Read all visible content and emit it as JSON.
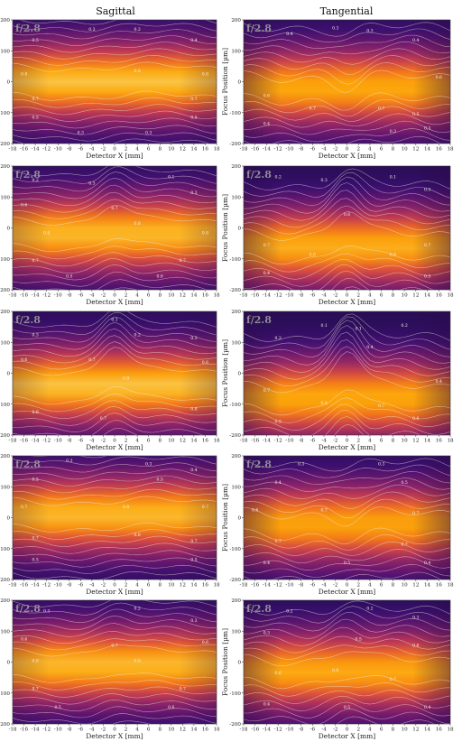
{
  "figure": {
    "col_titles": [
      "Sagittal",
      "Tangential"
    ]
  },
  "chart_data": [
    {
      "type": "heatmap",
      "panel": "sagittal-1",
      "fnumber": "f/2.8",
      "xlabel": "Detector X [mm]",
      "ylabel": "",
      "xlim": [
        -18,
        18
      ],
      "ylim": [
        -200,
        200
      ],
      "xticks": [
        -18,
        -16,
        -14,
        -12,
        -10,
        -8,
        -6,
        -4,
        -2,
        0,
        2,
        4,
        6,
        8,
        10,
        12,
        14,
        16,
        18
      ],
      "yticks": [
        200,
        100,
        0,
        -100,
        -200
      ],
      "contour_levels": [
        0.1,
        0.2,
        0.3,
        0.4,
        0.5,
        0.6,
        0.7,
        0.8
      ],
      "peak_value": 0.9,
      "peak_focus_um": 0,
      "center_bump": 0,
      "labels": [
        {
          "x": -14,
          "y": 130,
          "v": "0.5"
        },
        {
          "x": -4,
          "y": 165,
          "v": "0.3"
        },
        {
          "x": 4,
          "y": 165,
          "v": "0.2"
        },
        {
          "x": 14,
          "y": 130,
          "v": "0.4"
        },
        {
          "x": -16,
          "y": 20,
          "v": "0.8"
        },
        {
          "x": 4,
          "y": 30,
          "v": "0.8"
        },
        {
          "x": 16,
          "y": 20,
          "v": "0.8"
        },
        {
          "x": -14,
          "y": -60,
          "v": "0.7"
        },
        {
          "x": 14,
          "y": -60,
          "v": "0.7"
        },
        {
          "x": -14,
          "y": -120,
          "v": "0.5"
        },
        {
          "x": 14,
          "y": -120,
          "v": "0.5"
        },
        {
          "x": -6,
          "y": -170,
          "v": "0.3"
        },
        {
          "x": 6,
          "y": -170,
          "v": "0.3"
        }
      ]
    },
    {
      "type": "heatmap",
      "panel": "tangential-1",
      "fnumber": "f/2.8",
      "xlabel": "Detector X [mm]",
      "ylabel": "Focus Position [µm]",
      "xlim": [
        -18,
        18
      ],
      "ylim": [
        -200,
        200
      ],
      "xticks": [
        -18,
        -16,
        -14,
        -12,
        -10,
        -8,
        -6,
        -4,
        -2,
        0,
        2,
        4,
        6,
        8,
        10,
        12,
        14,
        16,
        18
      ],
      "yticks": [
        200,
        100,
        0,
        -100,
        -200
      ],
      "contour_levels": [
        0.1,
        0.2,
        0.3,
        0.4,
        0.5,
        0.6,
        0.7,
        0.8
      ],
      "peak_value": 0.85,
      "peak_focus_um": -20,
      "center_bump": -40,
      "labels": [
        {
          "x": -10,
          "y": 150,
          "v": "0.4"
        },
        {
          "x": -2,
          "y": 170,
          "v": "0.3"
        },
        {
          "x": 4,
          "y": 160,
          "v": "0.3"
        },
        {
          "x": 12,
          "y": 130,
          "v": "0.4"
        },
        {
          "x": 16,
          "y": 10,
          "v": "0.6"
        },
        {
          "x": -14,
          "y": -50,
          "v": "0.6"
        },
        {
          "x": -6,
          "y": -90,
          "v": "0.7"
        },
        {
          "x": 6,
          "y": -90,
          "v": "0.7"
        },
        {
          "x": 12,
          "y": -110,
          "v": "0.5"
        },
        {
          "x": -14,
          "y": -140,
          "v": "0.4"
        },
        {
          "x": 8,
          "y": -165,
          "v": "0.3"
        },
        {
          "x": 14,
          "y": -155,
          "v": "0.3"
        }
      ]
    },
    {
      "type": "heatmap",
      "panel": "sagittal-2",
      "fnumber": "f/2.8",
      "xlabel": "Detector X [mm]",
      "ylabel": "",
      "xlim": [
        -18,
        18
      ],
      "ylim": [
        -200,
        200
      ],
      "xticks": [
        -18,
        -16,
        -14,
        -12,
        -10,
        -8,
        -6,
        -4,
        -2,
        0,
        2,
        4,
        6,
        8,
        10,
        12,
        14,
        16,
        18
      ],
      "yticks": [
        200,
        100,
        0,
        -100,
        -200
      ],
      "contour_levels": [
        0.1,
        0.2,
        0.3,
        0.4,
        0.5,
        0.6,
        0.7,
        0.8
      ],
      "peak_value": 0.88,
      "peak_focus_um": -20,
      "center_bump": 60,
      "labels": [
        {
          "x": -14,
          "y": 150,
          "v": "0.2"
        },
        {
          "x": -4,
          "y": 140,
          "v": "0.3"
        },
        {
          "x": 10,
          "y": 160,
          "v": "0.1"
        },
        {
          "x": 14,
          "y": 110,
          "v": "0.3"
        },
        {
          "x": -16,
          "y": 70,
          "v": "0.6"
        },
        {
          "x": 0,
          "y": 60,
          "v": "0.7"
        },
        {
          "x": 4,
          "y": 10,
          "v": "0.8"
        },
        {
          "x": -12,
          "y": -20,
          "v": "0.8"
        },
        {
          "x": 16,
          "y": -20,
          "v": "0.8"
        },
        {
          "x": -14,
          "y": -110,
          "v": "0.7"
        },
        {
          "x": 12,
          "y": -110,
          "v": "0.7"
        },
        {
          "x": -8,
          "y": -160,
          "v": "0.5"
        },
        {
          "x": 8,
          "y": -160,
          "v": "0.6"
        }
      ]
    },
    {
      "type": "heatmap",
      "panel": "tangential-2",
      "fnumber": "f/2.8",
      "xlabel": "Detector X [mm]",
      "ylabel": "Focus Position [µm]",
      "xlim": [
        -18,
        18
      ],
      "ylim": [
        -200,
        200
      ],
      "xticks": [
        -18,
        -16,
        -14,
        -12,
        -10,
        -8,
        -6,
        -4,
        -2,
        0,
        2,
        4,
        6,
        8,
        10,
        12,
        14,
        16,
        18
      ],
      "yticks": [
        200,
        100,
        0,
        -100,
        -200
      ],
      "contour_levels": [
        0.1,
        0.2,
        0.3,
        0.4,
        0.5,
        0.6,
        0.7,
        0.8
      ],
      "peak_value": 0.86,
      "peak_focus_um": -60,
      "center_bump": 90,
      "labels": [
        {
          "x": -12,
          "y": 160,
          "v": "0.2"
        },
        {
          "x": -4,
          "y": 150,
          "v": "0.3"
        },
        {
          "x": 8,
          "y": 160,
          "v": "0.1"
        },
        {
          "x": 14,
          "y": 120,
          "v": "0.3"
        },
        {
          "x": 0,
          "y": 40,
          "v": "0.6"
        },
        {
          "x": -14,
          "y": -60,
          "v": "0.7"
        },
        {
          "x": -6,
          "y": -90,
          "v": "0.8"
        },
        {
          "x": 8,
          "y": -90,
          "v": "0.8"
        },
        {
          "x": 14,
          "y": -60,
          "v": "0.7"
        },
        {
          "x": -14,
          "y": -150,
          "v": "0.4"
        },
        {
          "x": 14,
          "y": -160,
          "v": "0.5"
        }
      ]
    },
    {
      "type": "heatmap",
      "panel": "sagittal-3",
      "fnumber": "f/2.8",
      "xlabel": "Detector X [mm]",
      "ylabel": "",
      "xlim": [
        -18,
        18
      ],
      "ylim": [
        -200,
        200
      ],
      "xticks": [
        -18,
        -16,
        -14,
        -12,
        -10,
        -8,
        -6,
        -4,
        -2,
        0,
        2,
        4,
        6,
        8,
        10,
        12,
        14,
        16,
        18
      ],
      "yticks": [
        200,
        100,
        0,
        -100,
        -200
      ],
      "contour_levels": [
        0.1,
        0.2,
        0.3,
        0.4,
        0.5,
        0.6,
        0.7,
        0.8
      ],
      "peak_value": 0.9,
      "peak_focus_um": -40,
      "center_bump": 90,
      "labels": [
        {
          "x": 0,
          "y": 170,
          "v": "0.1"
        },
        {
          "x": -14,
          "y": 120,
          "v": "0.3"
        },
        {
          "x": 4,
          "y": 120,
          "v": "0.2"
        },
        {
          "x": 14,
          "y": 110,
          "v": "0.3"
        },
        {
          "x": -16,
          "y": 40,
          "v": "0.6"
        },
        {
          "x": -4,
          "y": 40,
          "v": "0.7"
        },
        {
          "x": 16,
          "y": 30,
          "v": "0.6"
        },
        {
          "x": 2,
          "y": -20,
          "v": "0.8"
        },
        {
          "x": -14,
          "y": -130,
          "v": "0.8"
        },
        {
          "x": 14,
          "y": -120,
          "v": "0.8"
        },
        {
          "x": -2,
          "y": -150,
          "v": "0.7"
        }
      ]
    },
    {
      "type": "heatmap",
      "panel": "tangential-3",
      "fnumber": "f/2.8",
      "xlabel": "Detector X [mm]",
      "ylabel": "Focus Position [µm]",
      "xlim": [
        -18,
        18
      ],
      "ylim": [
        -200,
        200
      ],
      "xticks": [
        -18,
        -16,
        -14,
        -12,
        -10,
        -8,
        -6,
        -4,
        -2,
        0,
        2,
        4,
        6,
        8,
        10,
        12,
        14,
        16,
        18
      ],
      "yticks": [
        200,
        100,
        0,
        -100,
        -200
      ],
      "contour_levels": [
        0.1,
        0.2,
        0.3,
        0.4,
        0.5,
        0.6,
        0.7,
        0.8
      ],
      "peak_value": 0.85,
      "peak_focus_um": -80,
      "center_bump": 130,
      "labels": [
        {
          "x": -4,
          "y": 150,
          "v": "0.1"
        },
        {
          "x": 2,
          "y": 140,
          "v": "0.1"
        },
        {
          "x": 10,
          "y": 150,
          "v": "0.2"
        },
        {
          "x": -12,
          "y": 110,
          "v": "0.3"
        },
        {
          "x": 4,
          "y": 80,
          "v": "0.4"
        },
        {
          "x": 16,
          "y": -30,
          "v": "0.4"
        },
        {
          "x": -14,
          "y": -60,
          "v": "0.7"
        },
        {
          "x": -4,
          "y": -100,
          "v": "0.8"
        },
        {
          "x": 6,
          "y": -110,
          "v": "0.7"
        },
        {
          "x": -12,
          "y": -160,
          "v": "0.5"
        },
        {
          "x": 12,
          "y": -150,
          "v": "0.6"
        }
      ]
    },
    {
      "type": "heatmap",
      "panel": "sagittal-4",
      "fnumber": "f/2.8",
      "xlabel": "Detector X [mm]",
      "ylabel": "",
      "xlim": [
        -18,
        18
      ],
      "ylim": [
        -200,
        200
      ],
      "xticks": [
        -18,
        -16,
        -14,
        -12,
        -10,
        -8,
        -6,
        -4,
        -2,
        0,
        2,
        4,
        6,
        8,
        10,
        12,
        14,
        16,
        18
      ],
      "yticks": [
        200,
        100,
        0,
        -100,
        -200
      ],
      "contour_levels": [
        0.1,
        0.2,
        0.3,
        0.4,
        0.5,
        0.6,
        0.7,
        0.8
      ],
      "peak_value": 0.88,
      "peak_focus_um": 10,
      "center_bump": 0,
      "labels": [
        {
          "x": -8,
          "y": 180,
          "v": "0.3"
        },
        {
          "x": 6,
          "y": 170,
          "v": "0.3"
        },
        {
          "x": 14,
          "y": 150,
          "v": "0.4"
        },
        {
          "x": -14,
          "y": 120,
          "v": "0.5"
        },
        {
          "x": 8,
          "y": 120,
          "v": "0.5"
        },
        {
          "x": -16,
          "y": 30,
          "v": "0.7"
        },
        {
          "x": 2,
          "y": 30,
          "v": "0.8"
        },
        {
          "x": 16,
          "y": 30,
          "v": "0.7"
        },
        {
          "x": -14,
          "y": -70,
          "v": "0.7"
        },
        {
          "x": 4,
          "y": -60,
          "v": "0.8"
        },
        {
          "x": 14,
          "y": -80,
          "v": "0.7"
        },
        {
          "x": -14,
          "y": -140,
          "v": "0.5"
        },
        {
          "x": 14,
          "y": -140,
          "v": "0.5"
        }
      ]
    },
    {
      "type": "heatmap",
      "panel": "tangential-4",
      "fnumber": "f/2.8",
      "xlabel": "Detector X [mm]",
      "ylabel": "Focus Position [µm]",
      "xlim": [
        -18,
        18
      ],
      "ylim": [
        -200,
        200
      ],
      "xticks": [
        -18,
        -16,
        -14,
        -12,
        -10,
        -8,
        -6,
        -4,
        -2,
        0,
        2,
        4,
        6,
        8,
        10,
        12,
        14,
        16,
        18
      ],
      "yticks": [
        200,
        100,
        0,
        -100,
        -200
      ],
      "contour_levels": [
        0.1,
        0.2,
        0.3,
        0.4,
        0.5,
        0.6,
        0.7,
        0.8
      ],
      "peak_value": 0.84,
      "peak_focus_um": -20,
      "center_bump": -30,
      "labels": [
        {
          "x": -8,
          "y": 170,
          "v": "0.3"
        },
        {
          "x": 6,
          "y": 170,
          "v": "0.3"
        },
        {
          "x": -12,
          "y": 110,
          "v": "0.4"
        },
        {
          "x": 10,
          "y": 110,
          "v": "0.5"
        },
        {
          "x": -16,
          "y": 20,
          "v": "0.6"
        },
        {
          "x": -4,
          "y": 20,
          "v": "0.7"
        },
        {
          "x": 12,
          "y": 10,
          "v": "0.7"
        },
        {
          "x": -12,
          "y": -80,
          "v": "0.7"
        },
        {
          "x": 10,
          "y": -90,
          "v": "0.7"
        },
        {
          "x": -14,
          "y": -150,
          "v": "0.4"
        },
        {
          "x": 0,
          "y": -150,
          "v": "0.5"
        },
        {
          "x": 14,
          "y": -150,
          "v": "0.4"
        }
      ]
    },
    {
      "type": "heatmap",
      "panel": "sagittal-5",
      "fnumber": "f/2.8",
      "xlabel": "Detector X [mm]",
      "ylabel": "",
      "xlim": [
        -18,
        18
      ],
      "ylim": [
        -200,
        200
      ],
      "xticks": [
        -18,
        -16,
        -14,
        -12,
        -10,
        -8,
        -6,
        -4,
        -2,
        0,
        2,
        4,
        6,
        8,
        10,
        12,
        14,
        16,
        18
      ],
      "yticks": [
        200,
        100,
        0,
        -100,
        -200
      ],
      "contour_levels": [
        0.1,
        0.2,
        0.3,
        0.4,
        0.5,
        0.6,
        0.7,
        0.8
      ],
      "peak_value": 0.88,
      "peak_focus_um": -10,
      "center_bump": 30,
      "labels": [
        {
          "x": -12,
          "y": 160,
          "v": "0.3"
        },
        {
          "x": 4,
          "y": 170,
          "v": "0.2"
        },
        {
          "x": 14,
          "y": 130,
          "v": "0.3"
        },
        {
          "x": -16,
          "y": 70,
          "v": "0.6"
        },
        {
          "x": 0,
          "y": 50,
          "v": "0.7"
        },
        {
          "x": 16,
          "y": 60,
          "v": "0.6"
        },
        {
          "x": -14,
          "y": 0,
          "v": "0.8"
        },
        {
          "x": 4,
          "y": 0,
          "v": "0.8"
        },
        {
          "x": -14,
          "y": -90,
          "v": "0.7"
        },
        {
          "x": 12,
          "y": -90,
          "v": "0.7"
        },
        {
          "x": -10,
          "y": -150,
          "v": "0.5"
        },
        {
          "x": 10,
          "y": -150,
          "v": "0.6"
        }
      ]
    },
    {
      "type": "heatmap",
      "panel": "tangential-5",
      "fnumber": "f/2.8",
      "xlabel": "Detector X [mm]",
      "ylabel": "Focus Position [µm]",
      "xlim": [
        -18,
        18
      ],
      "ylim": [
        -200,
        200
      ],
      "xticks": [
        -18,
        -16,
        -14,
        -12,
        -10,
        -8,
        -6,
        -4,
        -2,
        0,
        2,
        4,
        6,
        8,
        10,
        12,
        14,
        16,
        18
      ],
      "yticks": [
        200,
        100,
        0,
        -100,
        -200
      ],
      "contour_levels": [
        0.1,
        0.2,
        0.3,
        0.4,
        0.5,
        0.6,
        0.7,
        0.8
      ],
      "peak_value": 0.85,
      "peak_focus_um": -30,
      "center_bump": 40,
      "labels": [
        {
          "x": -10,
          "y": 160,
          "v": "0.2"
        },
        {
          "x": 4,
          "y": 170,
          "v": "0.2"
        },
        {
          "x": 12,
          "y": 140,
          "v": "0.3"
        },
        {
          "x": -14,
          "y": 90,
          "v": "0.3"
        },
        {
          "x": 2,
          "y": 70,
          "v": "0.5"
        },
        {
          "x": 12,
          "y": 50,
          "v": "0.6"
        },
        {
          "x": -12,
          "y": -40,
          "v": "0.6"
        },
        {
          "x": -2,
          "y": -30,
          "v": "0.8"
        },
        {
          "x": 8,
          "y": -60,
          "v": "0.7"
        },
        {
          "x": -14,
          "y": -140,
          "v": "0.4"
        },
        {
          "x": 0,
          "y": -150,
          "v": "0.5"
        },
        {
          "x": 14,
          "y": -150,
          "v": "0.4"
        }
      ]
    }
  ]
}
